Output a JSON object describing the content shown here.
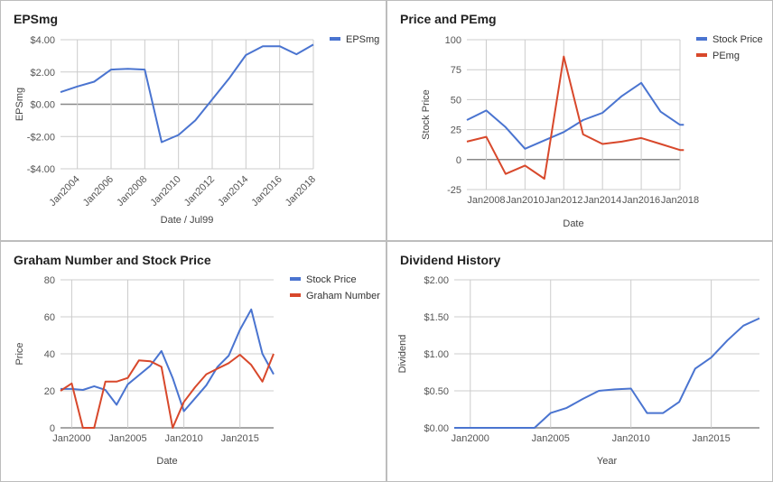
{
  "colors": {
    "blue": "#4a74d0",
    "red": "#d8482b",
    "grid": "#cccccc",
    "zero": "#888888",
    "text": "#555555"
  },
  "chart_data": [
    {
      "type": "line",
      "title": "EPSmg",
      "xlabel": "Date / Jul99",
      "ylabel": "EPSmg",
      "ylim": [
        -4,
        4
      ],
      "yticks": [
        "$4.00",
        "$2.00",
        "$0.00",
        "-$2.00",
        "-$4.00"
      ],
      "xlim": [
        2003,
        2018
      ],
      "xticks": [
        "Jan2004",
        "Jan2006",
        "Jan2008",
        "Jan2010",
        "Jan2012",
        "Jan2014",
        "Jan2016",
        "Jan2018"
      ],
      "grid": true,
      "legend": "right",
      "series": [
        {
          "name": "EPSmg",
          "color": "#4a74d0",
          "x": [
            2003,
            2004,
            2005,
            2006,
            2007,
            2008,
            2009,
            2010,
            2011,
            2012,
            2013,
            2014,
            2015,
            2016,
            2017,
            2018
          ],
          "y": [
            0.75,
            1.1,
            1.4,
            2.15,
            2.2,
            2.15,
            -2.35,
            -1.9,
            -1.0,
            0.3,
            1.6,
            3.05,
            3.6,
            3.6,
            3.1,
            3.7
          ]
        }
      ]
    },
    {
      "type": "line",
      "title": "Price and PEmg",
      "xlabel": "Date",
      "ylabel": "Stock Price",
      "ylim": [
        -25,
        100
      ],
      "yticks": [
        "100",
        "75",
        "50",
        "25",
        "0",
        "-25"
      ],
      "xlim": [
        2007,
        2018
      ],
      "xticks": [
        "Jan2008",
        "Jan2010",
        "Jan2012",
        "Jan2014",
        "Jan2016",
        "Jan2018"
      ],
      "grid": true,
      "legend": "right",
      "series": [
        {
          "name": "Stock Price",
          "color": "#4a74d0",
          "x": [
            2007,
            2008,
            2009,
            2010,
            2011,
            2012,
            2013,
            2014,
            2015,
            2016,
            2017,
            2018,
            2018.2
          ],
          "y": [
            33,
            41,
            27,
            9,
            16,
            23,
            33,
            39,
            53,
            64,
            40,
            29,
            29
          ]
        },
        {
          "name": "PEmg",
          "color": "#d8482b",
          "x": [
            2007,
            2008,
            2009,
            2010,
            2011,
            2012,
            2013,
            2014,
            2015,
            2016,
            2017,
            2018,
            2018.2
          ],
          "y": [
            15,
            19,
            -12,
            -5,
            -16,
            86,
            21,
            13,
            15,
            18,
            13,
            8,
            8
          ]
        }
      ]
    },
    {
      "type": "line",
      "title": "Graham Number and Stock Price",
      "xlabel": "Date",
      "ylabel": "Price",
      "ylim": [
        0,
        80
      ],
      "yticks": [
        "80",
        "60",
        "40",
        "20",
        "0"
      ],
      "xlim": [
        1999,
        2018
      ],
      "xticks": [
        "Jan2000",
        "Jan2005",
        "Jan2010",
        "Jan2015"
      ],
      "grid": true,
      "legend": "right",
      "series": [
        {
          "name": "Stock Price",
          "color": "#4a74d0",
          "x": [
            1999,
            2000,
            2001,
            2002,
            2003,
            2004,
            2005,
            2006,
            2007,
            2008,
            2009,
            2010,
            2011,
            2012,
            2013,
            2014,
            2015,
            2016,
            2017,
            2018
          ],
          "y": [
            21,
            21,
            20.5,
            22.5,
            20.5,
            12.5,
            23.5,
            28.5,
            33.5,
            41.5,
            27,
            9,
            16,
            23,
            33,
            39,
            53,
            64,
            40,
            29
          ]
        },
        {
          "name": "Graham Number",
          "color": "#d8482b",
          "x": [
            1999,
            2000,
            2001,
            2002,
            2003,
            2004,
            2005,
            2006,
            2007,
            2008,
            2009,
            2010,
            2011,
            2012,
            2013,
            2014,
            2015,
            2016,
            2017,
            2018
          ],
          "y": [
            20,
            24,
            0,
            0,
            25,
            25,
            27,
            36.5,
            36,
            33,
            0,
            14,
            22,
            29,
            32,
            35,
            39.5,
            34,
            25,
            40
          ]
        }
      ]
    },
    {
      "type": "line",
      "title": "Dividend History",
      "xlabel": "Year",
      "ylabel": "Dividend",
      "ylim": [
        0,
        2
      ],
      "yticks": [
        "$2.00",
        "$1.50",
        "$1.00",
        "$0.50",
        "$0.00"
      ],
      "xlim": [
        1999,
        2018
      ],
      "xticks": [
        "Jan2000",
        "Jan2005",
        "Jan2010",
        "Jan2015"
      ],
      "grid": true,
      "legend": "none",
      "series": [
        {
          "name": "",
          "color": "#4a74d0",
          "x": [
            1999,
            2000,
            2001,
            2002,
            2003,
            2004,
            2005,
            2006,
            2007,
            2008,
            2009,
            2010,
            2011,
            2012,
            2013,
            2014,
            2015,
            2016,
            2017,
            2018
          ],
          "y": [
            0,
            0,
            0,
            0,
            0,
            0,
            0.2,
            0.27,
            0.39,
            0.5,
            0.52,
            0.53,
            0.2,
            0.2,
            0.35,
            0.8,
            0.95,
            1.18,
            1.38,
            1.48
          ]
        }
      ]
    }
  ]
}
